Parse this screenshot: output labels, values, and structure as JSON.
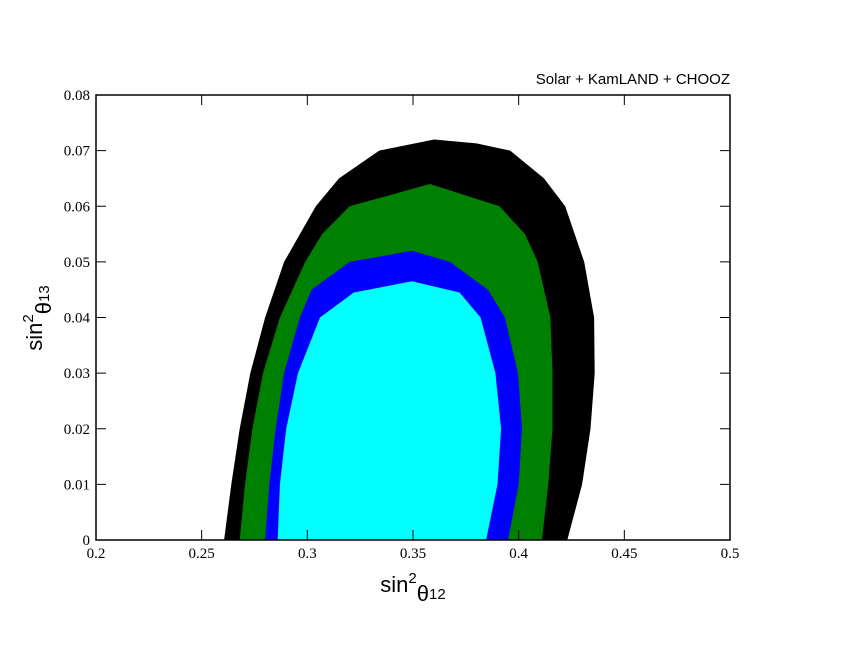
{
  "chart_data": {
    "type": "contour",
    "annotation": "Solar + KamLAND + CHOOZ",
    "xlabel": [
      "sin",
      "2",
      "θ",
      "12"
    ],
    "ylabel": [
      "sin",
      "2",
      "θ",
      "13"
    ],
    "xlim": [
      0.2,
      0.5
    ],
    "ylim": [
      0,
      0.08
    ],
    "xticks": [
      0.2,
      0.25,
      0.3,
      0.35,
      0.4,
      0.45,
      0.5
    ],
    "yticks": [
      0,
      0.01,
      0.02,
      0.03,
      0.04,
      0.05,
      0.06,
      0.07,
      0.08
    ],
    "regions": [
      {
        "color": "#000000",
        "x": [
          0.2606,
          0.264,
          0.268,
          0.273,
          0.28,
          0.289,
          0.304,
          0.315,
          0.334,
          0.36,
          0.38,
          0.396,
          0.412,
          0.422,
          0.431,
          0.4357,
          0.436,
          0.434,
          0.43,
          0.423
        ],
        "y": [
          0,
          0.01,
          0.02,
          0.03,
          0.04,
          0.05,
          0.06,
          0.065,
          0.07,
          0.072,
          0.0713,
          0.07,
          0.065,
          0.06,
          0.05,
          0.04,
          0.03,
          0.02,
          0.01,
          0
        ]
      },
      {
        "color": "#008000",
        "x": [
          0.268,
          0.2705,
          0.274,
          0.279,
          0.287,
          0.299,
          0.307,
          0.32,
          0.358,
          0.391,
          0.403,
          0.409,
          0.415,
          0.416,
          0.416,
          0.414,
          0.411
        ],
        "y": [
          0,
          0.01,
          0.02,
          0.03,
          0.04,
          0.05,
          0.055,
          0.06,
          0.064,
          0.06,
          0.055,
          0.05,
          0.04,
          0.03,
          0.02,
          0.01,
          0
        ]
      },
      {
        "color": "#0000ff",
        "x": [
          0.28,
          0.282,
          0.285,
          0.289,
          0.2965,
          0.302,
          0.32,
          0.3495,
          0.3675,
          0.3855,
          0.3935,
          0.3997,
          0.4016,
          0.4,
          0.395
        ],
        "y": [
          0,
          0.01,
          0.02,
          0.03,
          0.04,
          0.045,
          0.05,
          0.052,
          0.05,
          0.045,
          0.04,
          0.03,
          0.02,
          0.01,
          0
        ]
      },
      {
        "color": "#00ffff",
        "x": [
          0.286,
          0.287,
          0.29,
          0.2956,
          0.306,
          0.322,
          0.3495,
          0.372,
          0.382,
          0.389,
          0.3917,
          0.39,
          0.3846
        ],
        "y": [
          0,
          0.01,
          0.02,
          0.03,
          0.04,
          0.0445,
          0.0465,
          0.0445,
          0.04,
          0.03,
          0.02,
          0.01,
          0
        ]
      }
    ]
  }
}
